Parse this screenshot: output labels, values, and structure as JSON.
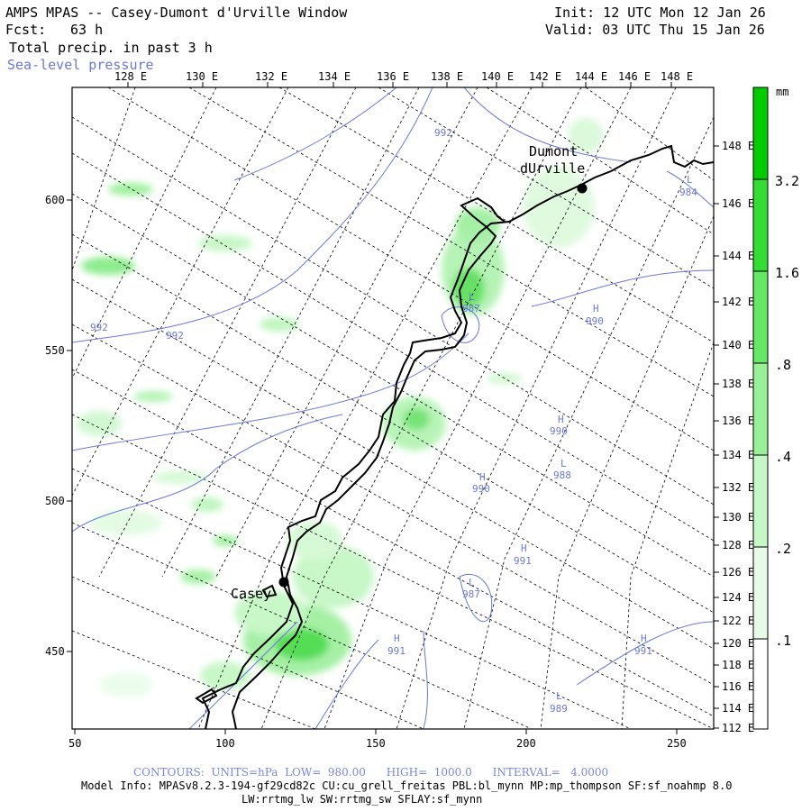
{
  "header": {
    "title": "AMPS MPAS -- Casey-Dumont d'Urville Window",
    "fcst_label": "Fcst:",
    "fcst_value": "63 h",
    "field": "Total precip. in past 3 h",
    "overlay": "Sea-level pressure",
    "init": "Init: 12 UTC Mon 12 Jan 26",
    "valid": "Valid: 03 UTC Thu 15 Jan 26"
  },
  "map": {
    "top_lon_labels": [
      "128 E",
      "130 E",
      "132 E",
      "134 E",
      "136 E",
      "138 E",
      "140 E",
      "142 E",
      "144 E",
      "146 E",
      "148 E"
    ],
    "right_lat_labels": [
      "148 E",
      "146 E",
      "144 E",
      "142 E",
      "140 E",
      "138 E",
      "136 E",
      "134 E",
      "132 E",
      "130 E",
      "128 E",
      "126 E",
      "124 E",
      "122 E",
      "120 E",
      "118 E",
      "116 E",
      "114 E",
      "112 E"
    ],
    "x_axis_labels": [
      "50",
      "100",
      "150",
      "200",
      "250"
    ],
    "y_axis_labels": [
      "600",
      "550",
      "500",
      "450"
    ],
    "stations": [
      {
        "name_line1": "Dumont",
        "name_line2": "dUrville"
      },
      {
        "name_line1": "Casey",
        "name_line2": ""
      }
    ],
    "pressure_labels": [
      "992",
      "992",
      "992",
      "987",
      "990",
      "990",
      "988",
      "990",
      "991",
      "987",
      "991",
      "991",
      "989",
      "984"
    ],
    "centers": [
      "L",
      "H",
      "H",
      "L",
      "H",
      "H",
      "L",
      "H",
      "H",
      "L",
      "L"
    ]
  },
  "colorbar": {
    "unit": "mm",
    "levels": [
      "3.2",
      "1.6",
      ".8",
      ".4",
      ".2",
      ".1"
    ],
    "colors": [
      "#00cc00",
      "#33dd33",
      "#66e866",
      "#99f099",
      "#c6f7c6",
      "#e8fbe8"
    ]
  },
  "footer": {
    "contours": "CONTOURS:  UNITS=hPa  LOW=  980.00      HIGH=  1000.0      INTERVAL=   4.0000",
    "model_info": "Model Info: MPASv8.2.3-194-gf29cd82c CU:cu_grell_freitas PBL:bl_mynn MP:mp_thompson SF:sf_noahmp 8.0",
    "model_info2": "LW:rrtmg_lw SW:rrtmg_sw SFLAY:sf_mynn"
  }
}
